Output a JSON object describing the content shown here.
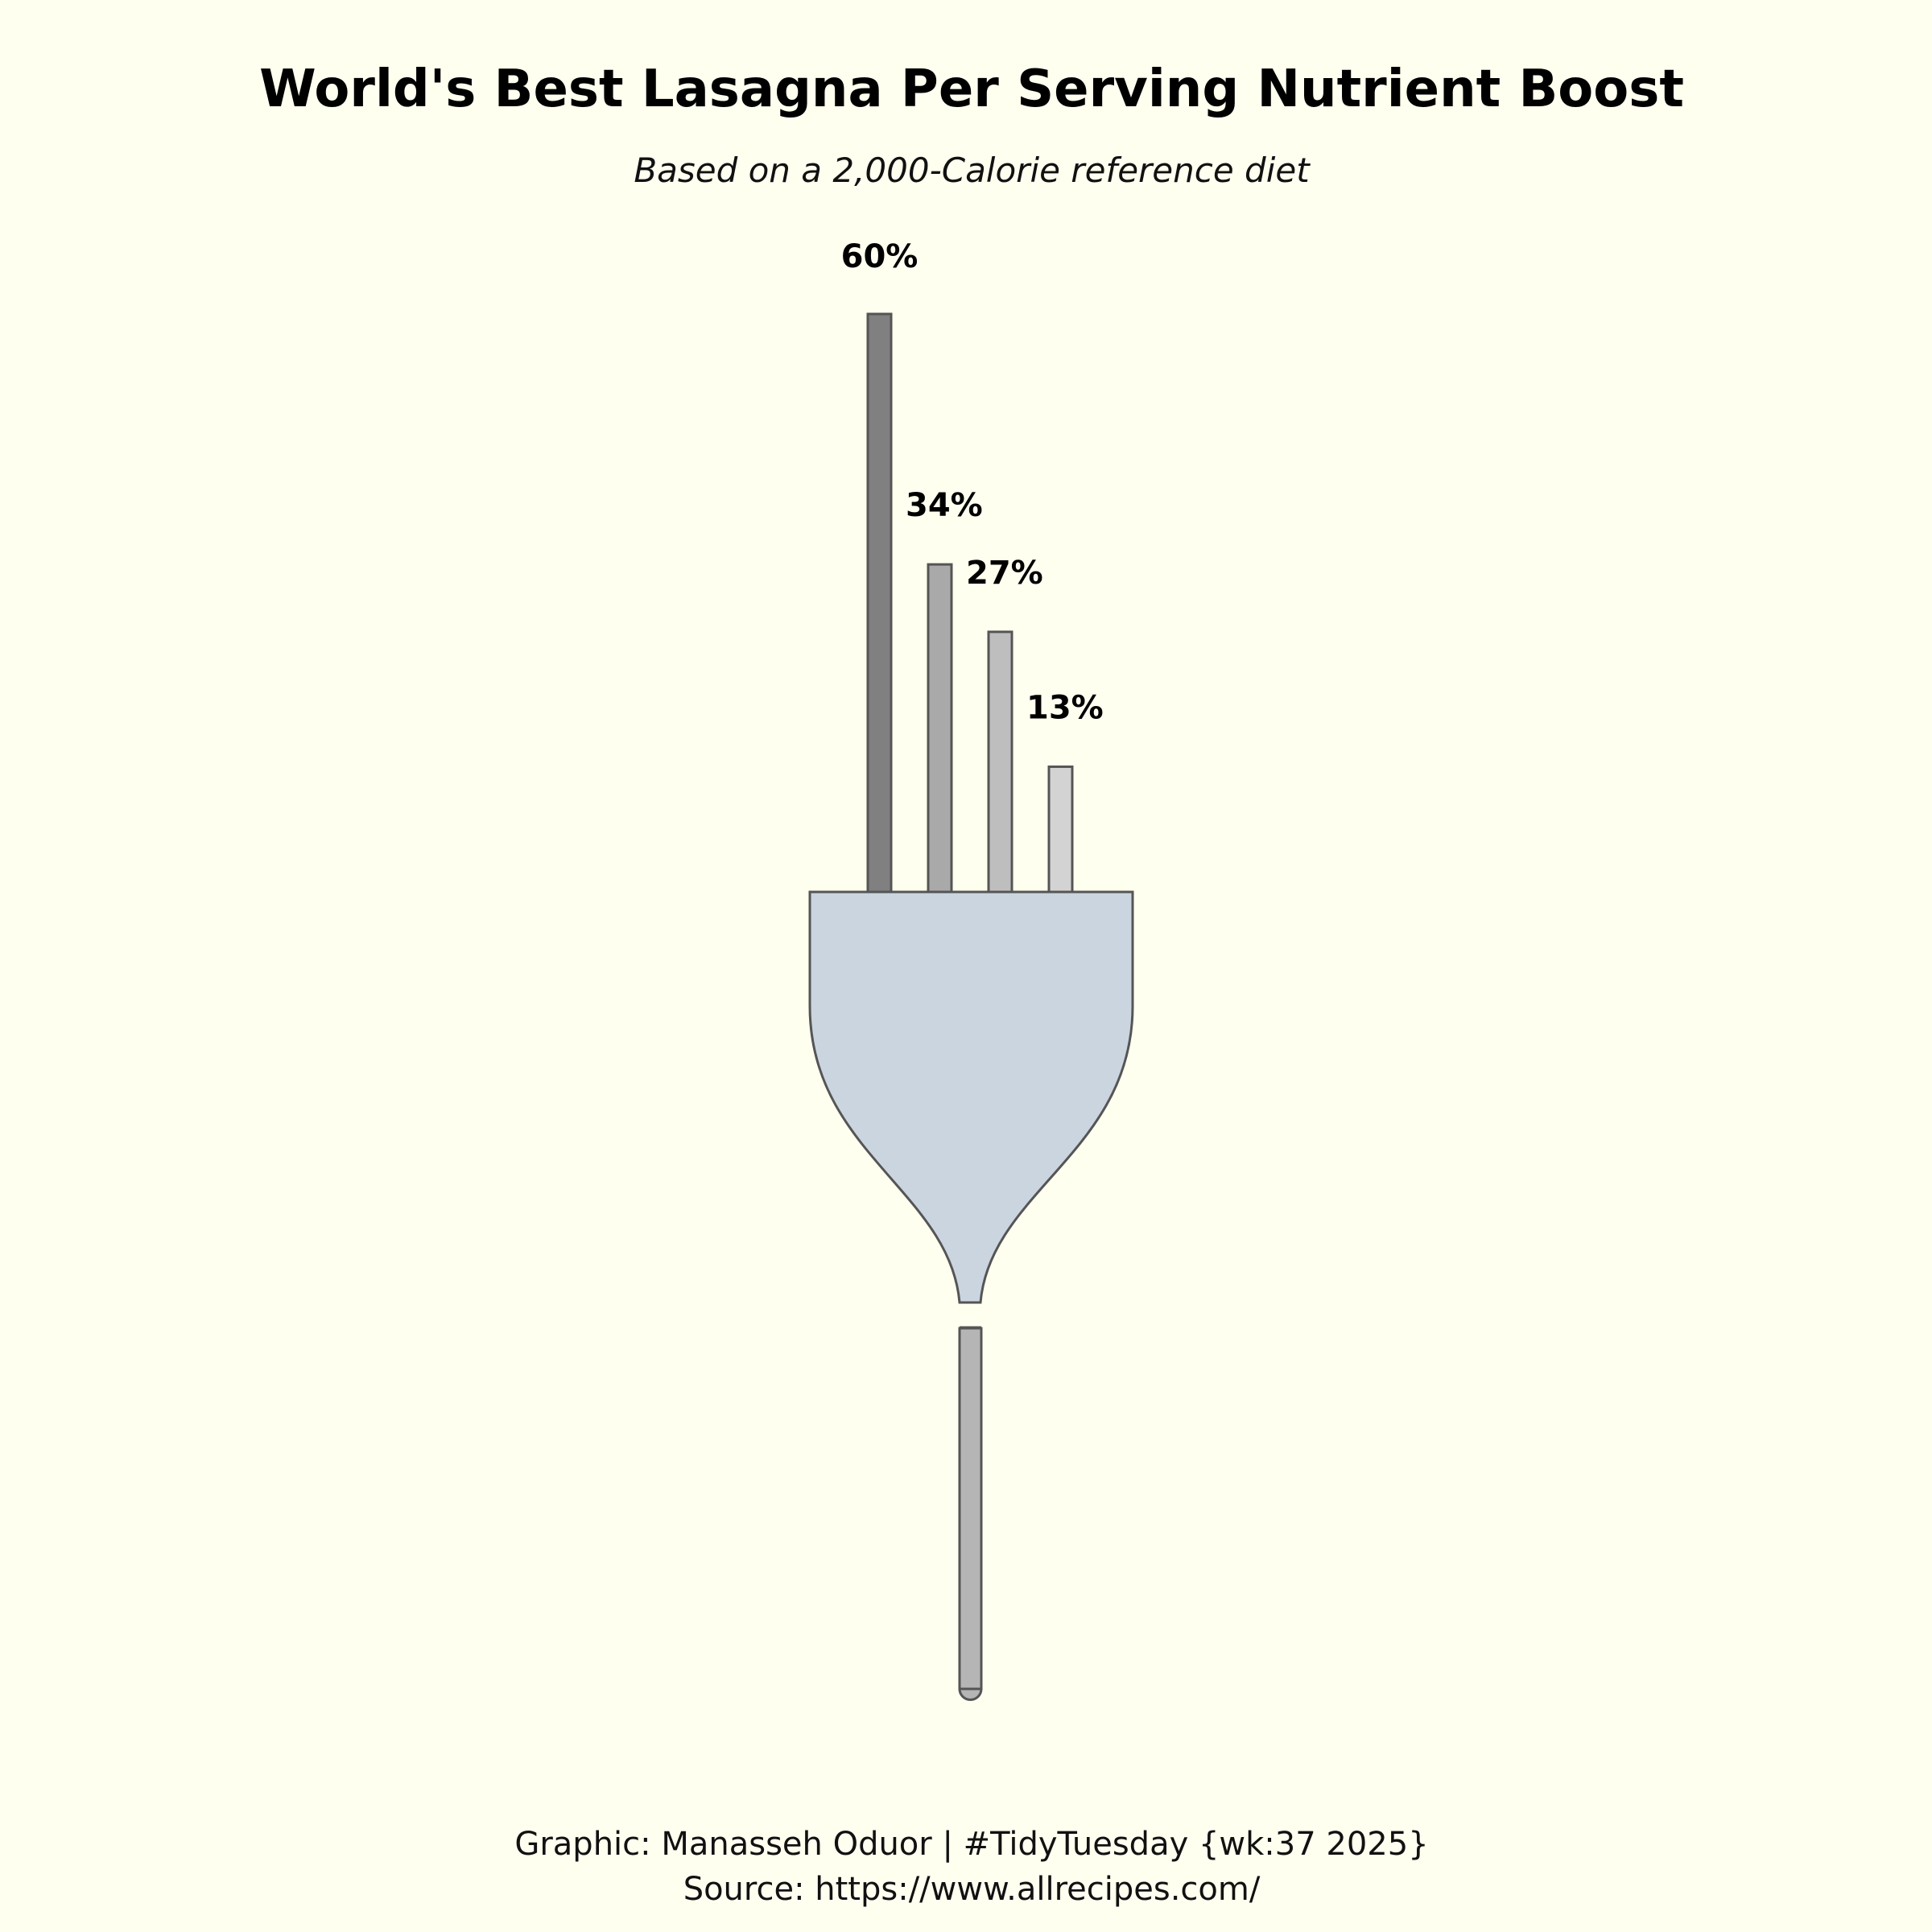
{
  "page": {
    "background": "#FFFFF0"
  },
  "chart_data": {
    "type": "bar",
    "title": "World's Best Lasagna Per Serving Nutrient Boost",
    "subtitle": "Based on a 2,000-Calorie reference diet",
    "values": [
      60,
      34,
      27,
      13
    ],
    "value_labels": [
      "60%",
      "34%",
      "27%",
      "13%"
    ],
    "value_unit": "%",
    "ylim": [
      0,
      60
    ],
    "bar_colors": [
      "#808080",
      "#A9A9A9",
      "#BEBEBE",
      "#D3D3D3"
    ],
    "grid": false,
    "legend": "none",
    "decoration": {
      "fork_head_color": "#CBD5E0",
      "fork_handle_color": "#B5B5B5",
      "outline_color": "#555555"
    }
  },
  "caption": {
    "line1": "Graphic: Manasseh Oduor | #TidyTuesday {wk:37 2025}",
    "line2": "Source: https://www.allrecipes.com/"
  }
}
